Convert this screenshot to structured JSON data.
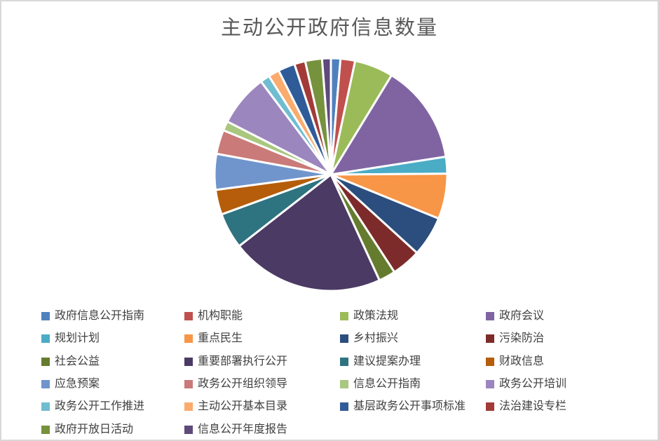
{
  "title": "主动公开政府信息数量",
  "colors": {
    "background": "#FFFFFF",
    "border": "#D8D8D8",
    "title_text": "#595959",
    "legend_text": "#404040",
    "slice_separator": "#FFFFFF"
  },
  "chart_data": {
    "type": "pie",
    "title": "主动公开政府信息数量",
    "legend_position": "bottom",
    "legend_columns": 4,
    "start_angle_deg": 0,
    "labels": [
      "政府信息公开指南",
      "机构职能",
      "政策法规",
      "政府会议",
      "规划计划",
      "重点民生",
      "乡村振兴",
      "污染防治",
      "社会公益",
      "重要部署执行公开",
      "建议提案办理",
      "财政信息",
      "应急预案",
      "政务公开组织领导",
      "信息公开指南",
      "政务公开培训",
      "政务公开工作推进",
      "主动公开基本目录",
      "基层政务公开事项标准",
      "法治建设专栏",
      "政府开放日活动",
      "信息公开年度报告"
    ],
    "values_percent": [
      1.3,
      2.0,
      5.3,
      13.6,
      2.3,
      6.2,
      5.5,
      4.0,
      2.3,
      21.0,
      4.9,
      3.4,
      4.9,
      3.3,
      1.3,
      7.1,
      1.3,
      1.5,
      2.3,
      1.5,
      2.3,
      1.2
    ],
    "colors": [
      "#4F81BD",
      "#C0504D",
      "#9BBB59",
      "#8064A2",
      "#4BACC6",
      "#F79646",
      "#2B4E7E",
      "#7D2B2A",
      "#657C2F",
      "#4B3A64",
      "#2E7380",
      "#B55D0A",
      "#7095CC",
      "#CA7A78",
      "#A9C77E",
      "#9C86BE",
      "#6FBDD1",
      "#FAAB6E",
      "#2F5C99",
      "#A23B38",
      "#76923D",
      "#5E4A7B"
    ]
  }
}
